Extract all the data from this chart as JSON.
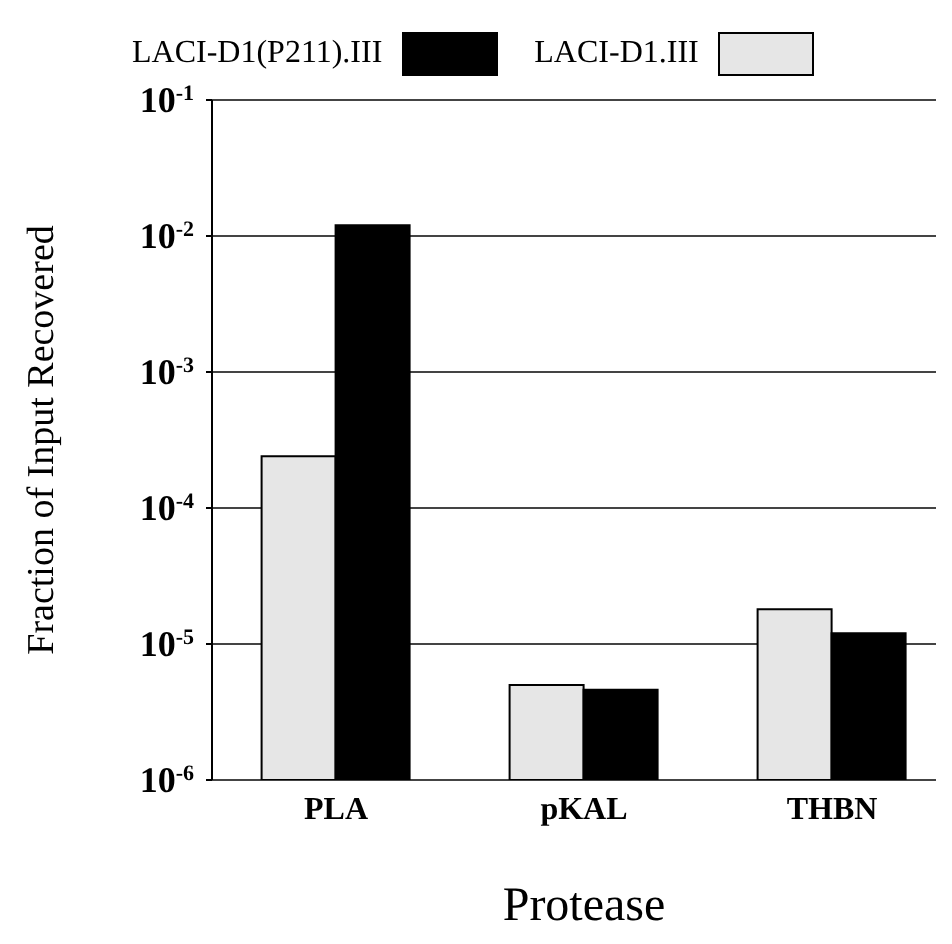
{
  "chart_data": {
    "type": "bar",
    "xlabel": "Protease",
    "ylabel": "Fraction of Input Recovered",
    "categories": [
      "PLA",
      "pKAL",
      "THBN"
    ],
    "series": [
      {
        "name": "LACI-D1.III",
        "color": "#e6e6e6",
        "values": [
          0.00024,
          5e-06,
          1.8e-05
        ]
      },
      {
        "name": "LACI-D1(P211).III",
        "color": "#000000",
        "values": [
          0.012,
          4.6e-06,
          1.2e-05
        ]
      }
    ],
    "log": "y",
    "ylim": [
      1e-06,
      0.1
    ],
    "yticks": [
      {
        "value": 1e-06,
        "label": "10$^{-6}$"
      },
      {
        "value": 1e-05,
        "label": "10$^{-5}$"
      },
      {
        "value": 0.0001,
        "label": "10$^{-4}$"
      },
      {
        "value": 0.001,
        "label": "10$^{-3}$"
      },
      {
        "value": 0.01,
        "label": "10$^{-2}$"
      },
      {
        "value": 0.1,
        "label": "10$^{-1}$"
      }
    ],
    "grid": "y",
    "legend": "top"
  }
}
